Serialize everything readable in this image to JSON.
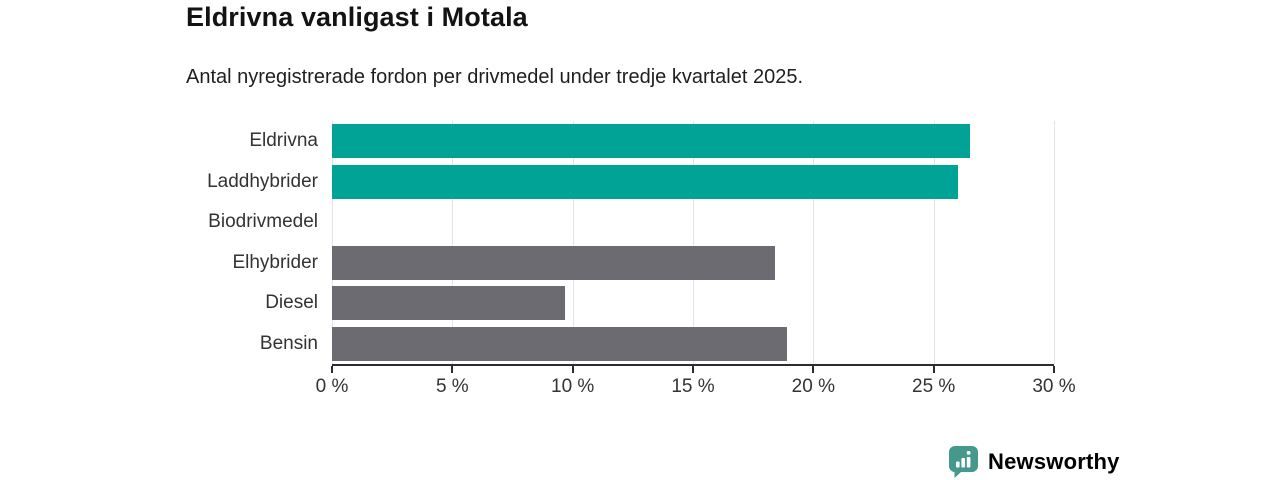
{
  "header": {
    "title": "Eldrivna vanligast i Motala",
    "subtitle": "Antal nyregistrerade fordon per drivmedel under tredje kvartalet 2025."
  },
  "chart_data": {
    "type": "bar",
    "orientation": "horizontal",
    "title": "Eldrivna vanligast i Motala",
    "subtitle": "Antal nyregistrerade fordon per drivmedel under tredje kvartalet 2025.",
    "categories": [
      "Eldrivna",
      "Laddhybrider",
      "Biodrivmedel",
      "Elhybrider",
      "Diesel",
      "Bensin"
    ],
    "values": [
      26.5,
      26.0,
      0,
      18.4,
      9.7,
      18.9
    ],
    "unit": "%",
    "xlim": [
      0,
      30
    ],
    "x_ticks": [
      0,
      5,
      10,
      15,
      20,
      25,
      30
    ],
    "x_tick_suffix": " %",
    "highlight_categories": [
      "Eldrivna",
      "Laddhybrider"
    ],
    "colors": {
      "highlight": "#00a396",
      "default": "#6c6b72"
    },
    "grid": "vertical",
    "legend": "none"
  },
  "branding": {
    "logo_text": "Newsworthy",
    "logo_color": "#45998c",
    "logo_icon": "speech-bubble-bar-chart"
  }
}
